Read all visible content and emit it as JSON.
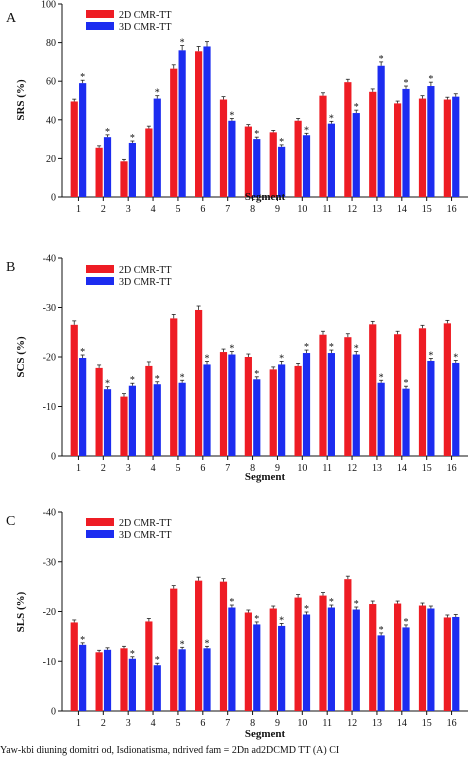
{
  "caption": "Yaw-kbi diuning domitri od, Isdionatisma, ndrived fam = 2Dn ad2DCMD TT (A) CI",
  "colors": {
    "series_2d": "#ee1c24",
    "series_3d": "#1c2cf0",
    "axis": "#111111"
  },
  "chart_data": [
    {
      "type": "bar",
      "panel_label": "A",
      "ylabel": "SRS (%)",
      "xlabel": "Segment",
      "categories": [
        "1",
        "2",
        "3",
        "4",
        "5",
        "6",
        "7",
        "8",
        "9",
        "10",
        "11",
        "12",
        "13",
        "14",
        "15",
        "16"
      ],
      "ylim": [
        0,
        100
      ],
      "yticks": [
        0,
        20,
        40,
        60,
        80,
        100
      ],
      "ytick_labels": [
        "0",
        "20",
        "40",
        "60",
        "80",
        "100"
      ],
      "inverted": false,
      "legend": "top-left",
      "series": [
        {
          "name": "2D CMR-TT",
          "color": "#ee1c24",
          "values": [
            49.5,
            25.5,
            18.5,
            35.5,
            66.5,
            75.5,
            50.5,
            36.5,
            33.5,
            39.5,
            52.5,
            59.5,
            54.5,
            48.5,
            51,
            50.5
          ],
          "errors": [
            1.2,
            1.0,
            1.0,
            1.2,
            2.0,
            2.5,
            1.5,
            1.0,
            1.0,
            1.2,
            1.5,
            1.5,
            1.5,
            1.2,
            1.5,
            1.2
          ]
        },
        {
          "name": "3D CMR-TT",
          "color": "#1c2cf0",
          "values": [
            59,
            31,
            28,
            51,
            76,
            78,
            39.5,
            30,
            26,
            32,
            38,
            43.5,
            68,
            56,
            57.5,
            52
          ],
          "errors": [
            1.5,
            1.2,
            1.0,
            1.5,
            2.5,
            2.5,
            1.2,
            1.0,
            1.0,
            1.0,
            1.2,
            1.5,
            2.0,
            1.5,
            2.0,
            1.5
          ],
          "significant": [
            true,
            true,
            true,
            true,
            true,
            false,
            true,
            true,
            true,
            true,
            true,
            true,
            true,
            true,
            true,
            false
          ]
        }
      ]
    },
    {
      "type": "bar",
      "panel_label": "B",
      "ylabel": "SCS (%)",
      "xlabel": "Segment",
      "categories": [
        "1",
        "2",
        "3",
        "4",
        "5",
        "6",
        "7",
        "8",
        "9",
        "10",
        "11",
        "12",
        "13",
        "14",
        "15",
        "16"
      ],
      "ylim": [
        0,
        -40
      ],
      "yticks": [
        0,
        -10,
        -20,
        -30,
        -40
      ],
      "ytick_labels": [
        "0",
        "-10",
        "-20",
        "-30",
        "-40"
      ],
      "inverted": true,
      "legend": "top-left",
      "series": [
        {
          "name": "2D CMR-TT",
          "color": "#ee1c24",
          "values": [
            -26.5,
            -17.8,
            -12,
            -18.2,
            -27.8,
            -29.5,
            -21,
            -20,
            -17.5,
            -18.2,
            -24.5,
            -24,
            -26.6,
            -24.6,
            -25.8,
            -26.8
          ],
          "errors": [
            0.8,
            0.6,
            0.6,
            0.8,
            0.8,
            0.8,
            0.6,
            0.6,
            0.5,
            0.5,
            0.7,
            0.7,
            0.6,
            0.6,
            0.6,
            0.6
          ]
        },
        {
          "name": "3D CMR-TT",
          "color": "#1c2cf0",
          "values": [
            -19.8,
            -13.5,
            -14.2,
            -14.5,
            -14.8,
            -18.5,
            -20.5,
            -15.5,
            -18.5,
            -20.8,
            -20.8,
            -20.5,
            -14.8,
            -13.6,
            -19.2,
            -18.8
          ],
          "errors": [
            0.6,
            0.5,
            0.5,
            0.5,
            0.5,
            0.6,
            0.6,
            0.5,
            0.6,
            0.6,
            0.6,
            0.6,
            0.5,
            0.5,
            0.5,
            0.5
          ],
          "significant": [
            true,
            true,
            true,
            true,
            true,
            true,
            true,
            true,
            true,
            true,
            true,
            true,
            true,
            true,
            true,
            true
          ]
        }
      ]
    },
    {
      "type": "bar",
      "panel_label": "C",
      "ylabel": "SLS (%)",
      "xlabel": "Segment",
      "categories": [
        "1",
        "2",
        "3",
        "4",
        "5",
        "6",
        "7",
        "8",
        "9",
        "10",
        "11",
        "12",
        "13",
        "14",
        "15",
        "16"
      ],
      "ylim": [
        0,
        -40
      ],
      "yticks": [
        0,
        -10,
        -20,
        -30,
        -40
      ],
      "ytick_labels": [
        "0",
        "-10",
        "-20",
        "-30",
        "-40"
      ],
      "inverted": true,
      "legend": "top-left",
      "series": [
        {
          "name": "2D CMR-TT",
          "color": "#ee1c24",
          "values": [
            -17.8,
            -11.8,
            -12.6,
            -18,
            -24.6,
            -26.2,
            -26,
            -19.8,
            -20.6,
            -22.8,
            -23.2,
            -26.5,
            -21.5,
            -21.6,
            -21.2,
            -18.8
          ],
          "errors": [
            0.5,
            0.4,
            0.4,
            0.6,
            0.6,
            0.7,
            0.6,
            0.5,
            0.5,
            0.6,
            0.6,
            0.6,
            0.6,
            0.5,
            0.5,
            0.5
          ]
        },
        {
          "name": "3D CMR-TT",
          "color": "#1c2cf0",
          "values": [
            -13.3,
            -12.3,
            -10.5,
            -9.2,
            -12.4,
            -12.6,
            -20.8,
            -17.4,
            -17.1,
            -19.4,
            -20.8,
            -20.4,
            -15.2,
            -16.8,
            -20.6,
            -18.9
          ],
          "errors": [
            0.4,
            0.4,
            0.4,
            0.4,
            0.4,
            0.4,
            0.5,
            0.5,
            0.5,
            0.5,
            0.5,
            0.5,
            0.5,
            0.5,
            0.5,
            0.5
          ],
          "significant": [
            true,
            false,
            true,
            true,
            true,
            true,
            true,
            true,
            true,
            true,
            true,
            true,
            true,
            true,
            false,
            false
          ]
        }
      ]
    }
  ]
}
